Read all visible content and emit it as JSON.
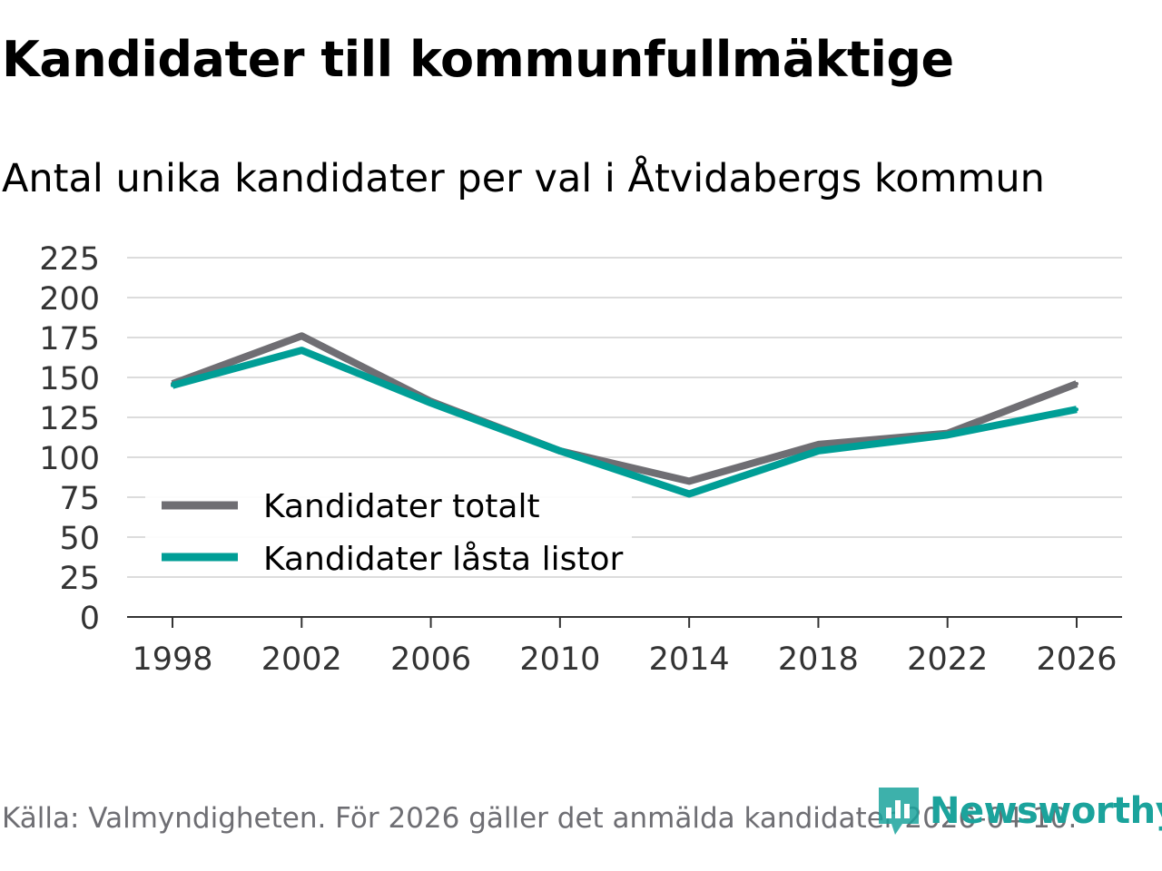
{
  "title": "Kandidater till kommunfullmäktige",
  "subtitle": "Antal unika kandidater per val i Åtvidabergs kommun",
  "source": "Källa: Valmyndigheten. För 2026 gäller det anmälda kandidater 2026-04-10.",
  "brand": {
    "name": "Newsworthy",
    "color": "#1ba39c"
  },
  "chart_data": {
    "type": "line",
    "title": "Kandidater till kommunfullmäktige",
    "xlabel": "",
    "ylabel": "",
    "categories": [
      "1998",
      "2002",
      "2006",
      "2010",
      "2014",
      "2018",
      "2022",
      "2026"
    ],
    "x": [
      1998,
      2002,
      2006,
      2010,
      2014,
      2018,
      2022,
      2026
    ],
    "ylim": [
      0,
      225
    ],
    "yticks": [
      0,
      25,
      50,
      75,
      100,
      125,
      150,
      175,
      200,
      225
    ],
    "grid": true,
    "legend": "bottom-left",
    "series": [
      {
        "name": "Kandidater totalt",
        "color": "#6f6e73",
        "values": [
          146,
          176,
          135,
          104,
          85,
          108,
          115,
          146
        ]
      },
      {
        "name": "Kandidater låsta listor",
        "color": "#009e96",
        "values": [
          145,
          167,
          134,
          104,
          77,
          104,
          114,
          130
        ]
      }
    ]
  }
}
